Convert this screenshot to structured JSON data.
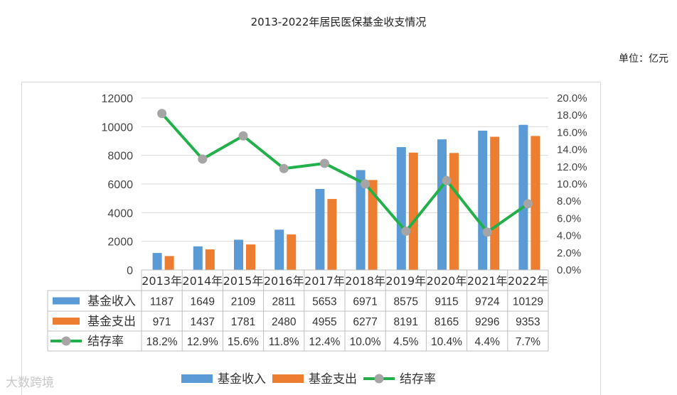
{
  "title": "2013-2022年居民医保基金收支情况",
  "unit_label": "单位：亿元",
  "watermark": "大数跨境",
  "chart_data": {
    "type": "bar",
    "categories": [
      "2013年",
      "2014年",
      "2015年",
      "2016年",
      "2017年",
      "2018年",
      "2019年",
      "2020年",
      "2021年",
      "2022年"
    ],
    "series": [
      {
        "name": "基金收入",
        "type": "bar",
        "axis": "left",
        "color": "#5b9bd5",
        "values": [
          1187,
          1649,
          2109,
          2811,
          5653,
          6971,
          8575,
          9115,
          9724,
          10129
        ]
      },
      {
        "name": "基金支出",
        "type": "bar",
        "axis": "left",
        "color": "#ed7d31",
        "values": [
          971,
          1437,
          1781,
          2480,
          4955,
          6277,
          8191,
          8165,
          9296,
          9353
        ]
      },
      {
        "name": "结存率",
        "type": "line",
        "axis": "right",
        "color": "#22b04b",
        "marker_color": "#a5a5a5",
        "values": [
          18.2,
          12.9,
          15.6,
          11.8,
          12.4,
          10.0,
          4.5,
          10.4,
          4.4,
          7.7
        ]
      }
    ],
    "table_rows": [
      [
        "1187",
        "1649",
        "2109",
        "2811",
        "5653",
        "6971",
        "8575",
        "9115",
        "9724",
        "10129"
      ],
      [
        "971",
        "1437",
        "1781",
        "2480",
        "4955",
        "6277",
        "8191",
        "8165",
        "9296",
        "9353"
      ],
      [
        "18.2%",
        "12.9%",
        "15.6%",
        "11.8%",
        "12.4%",
        "10.0%",
        "4.5%",
        "10.4%",
        "4.4%",
        "7.7%"
      ]
    ],
    "y_left": {
      "min": 0,
      "max": 12000,
      "ticks": [
        "0",
        "2000",
        "4000",
        "6000",
        "8000",
        "10000",
        "12000"
      ]
    },
    "y_right": {
      "min": 0,
      "max": 20,
      "ticks": [
        "0.0%",
        "2.0%",
        "4.0%",
        "6.0%",
        "8.0%",
        "10.0%",
        "12.0%",
        "14.0%",
        "16.0%",
        "18.0%",
        "20.0%"
      ]
    },
    "grid": true,
    "legend_position": "bottom"
  }
}
